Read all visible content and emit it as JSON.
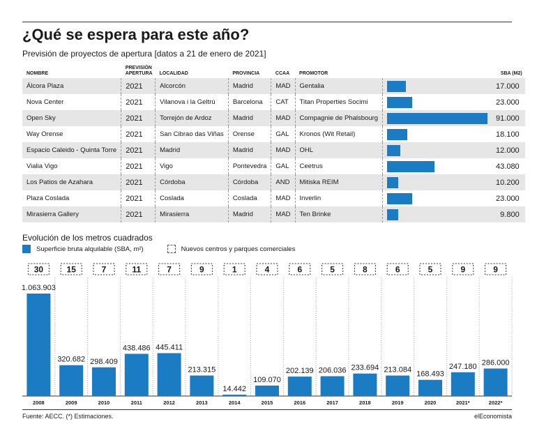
{
  "title": "¿Qué se espera para este año?",
  "subtitle": "Previsión de proyectos de apertura [datos a 21 de enero de 2021]",
  "table": {
    "headers": {
      "nombre": "NOMBRE",
      "prevision_line1": "PREVISIÓN",
      "prevision_line2": "APERTURA",
      "localidad": "LOCALIDAD",
      "provincia": "PROVINCIA",
      "ccaa": "CCAA",
      "promotor": "PROMOTOR",
      "sba": "SBA (M2)"
    },
    "rows": [
      {
        "nombre": "Álcora Plaza",
        "anio": "2021",
        "localidad": "Alcorcón",
        "provincia": "Madrid",
        "ccaa": "MAD",
        "promotor": "Gentalia",
        "sba_label": "17.000",
        "sba": 17000
      },
      {
        "nombre": "Nova Center",
        "anio": "2021",
        "localidad": "Vilanova i la Geltrú",
        "provincia": "Barcelona",
        "ccaa": "CAT",
        "promotor": "Titan Properties Socimi",
        "sba_label": "23.000",
        "sba": 23000
      },
      {
        "nombre": "Open Sky",
        "anio": "2021",
        "localidad": "Torrejón de Ardoz",
        "provincia": "Madrid",
        "ccaa": "MAD",
        "promotor": "Compagnie de Phalsbourg",
        "sba_label": "91.000",
        "sba": 91000
      },
      {
        "nombre": "Way Orense",
        "anio": "2021",
        "localidad": "San Cibrao das Viñas",
        "provincia": "Orense",
        "ccaa": "GAL",
        "promotor": "Kronos (Wit Retail)",
        "sba_label": "18.100",
        "sba": 18100
      },
      {
        "nombre": "Espacio Caleido - Quinta Torre",
        "anio": "2021",
        "localidad": "Madrid",
        "provincia": "Madrid",
        "ccaa": "MAD",
        "promotor": "OHL",
        "sba_label": "12.000",
        "sba": 12000
      },
      {
        "nombre": "Vialia Vigo",
        "anio": "2021",
        "localidad": "Vigo",
        "provincia": "Pontevedra",
        "ccaa": "GAL",
        "promotor": "Ceetrus",
        "sba_label": "43.080",
        "sba": 43080
      },
      {
        "nombre": "Los Patios de Azahara",
        "anio": "2021",
        "localidad": "Córdoba",
        "provincia": "Córdoba",
        "ccaa": "AND",
        "promotor": "Mitiska REIM",
        "sba_label": "10.200",
        "sba": 10200
      },
      {
        "nombre": "Plaza Coslada",
        "anio": "2021",
        "localidad": "Coslada",
        "provincia": "Coslada",
        "ccaa": "MAD",
        "promotor": "Inverlin",
        "sba_label": "23.000",
        "sba": 23000
      },
      {
        "nombre": "Mirasierra Gallery",
        "anio": "2021",
        "localidad": "Mirasierra",
        "provincia": "Madrid",
        "ccaa": "MAD",
        "promotor": "Ten Brinke",
        "sba_label": "9.800",
        "sba": 9800
      }
    ]
  },
  "evolution_title": "Evolución de los metros cuadrados",
  "legend": {
    "sba": "Superficie bruta alquilable (SBA, m²)",
    "nuevos": "Nuevos centros y parques comerciales"
  },
  "colors": {
    "bar": "#1b7cc4",
    "row_shade": "#e6e6e6"
  },
  "chart_data": {
    "type": "bar",
    "categories": [
      "2008",
      "2009",
      "2010",
      "2011",
      "2012",
      "2013",
      "2014",
      "2015",
      "2016",
      "2017",
      "2018",
      "2019",
      "2020",
      "2021*",
      "2022*"
    ],
    "series": [
      {
        "name": "Superficie bruta alquilable (SBA, m²)",
        "values": [
          1063903,
          320682,
          298409,
          438486,
          445411,
          213315,
          14442,
          109070,
          202139,
          206036,
          233694,
          213084,
          168493,
          247180,
          286000
        ]
      },
      {
        "name": "Nuevos centros y parques comerciales",
        "values": [
          30,
          15,
          7,
          11,
          7,
          9,
          1,
          4,
          6,
          5,
          8,
          6,
          5,
          9,
          9
        ]
      }
    ],
    "value_labels": [
      "1.063.903",
      "320.682",
      "298.409",
      "438.486",
      "445.411",
      "213.315",
      "14.442",
      "109.070",
      "202.139",
      "206.036",
      "233.694",
      "213.084",
      "168.493",
      "247.180",
      "286.000"
    ],
    "ylim": [
      0,
      1063903
    ]
  },
  "footer": {
    "source": "Fuente: AECC. (*) Estimaciones.",
    "brand": "elEconomista"
  }
}
